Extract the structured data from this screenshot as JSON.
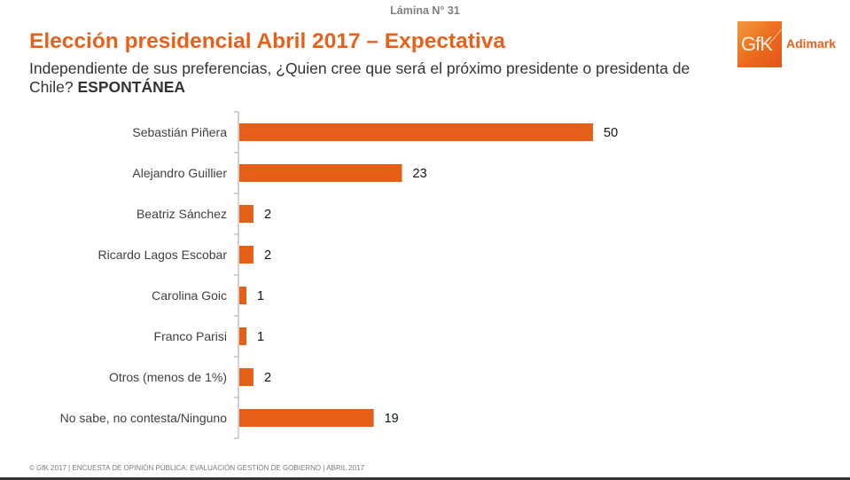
{
  "header": {
    "slide_number": "Lámina N° 31",
    "title": "Elección presidencial Abril 2017 – Expectativa",
    "question": "Independiente de sus preferencias, ¿Quien cree que será el próximo presidente o presidenta de Chile?",
    "question_type": "ESPONTÁNEA"
  },
  "logo": {
    "mark": "GfK",
    "word": "Adimark"
  },
  "colors": {
    "accent": "#e8611a",
    "bar": "#e55f16"
  },
  "chart_data": {
    "type": "bar",
    "orientation": "horizontal",
    "title": "Elección presidencial Abril 2017 – Expectativa",
    "xlabel": "",
    "ylabel": "",
    "xlim": [
      0,
      50
    ],
    "grid": false,
    "legend": "none",
    "categories": [
      "Sebastián Piñera",
      "Alejandro Guillier",
      "Beatriz Sánchez",
      "Ricardo Lagos Escobar",
      "Carolina Goic",
      "Franco Parisi",
      "Otros (menos de 1%)",
      "No sabe, no contesta/Ninguno"
    ],
    "values": [
      50,
      23,
      2,
      2,
      1,
      1,
      2,
      19
    ],
    "data_labels": [
      "50",
      "23",
      "2",
      "2",
      "1",
      "1",
      "2",
      "19"
    ]
  },
  "footer": {
    "text": "© GfK 2017 | ENCUESTA DE OPINIÓN PÚBLICA: EVALUACIÓN GESTIÓN DE GOBIERNO | ABRIL 2017"
  }
}
